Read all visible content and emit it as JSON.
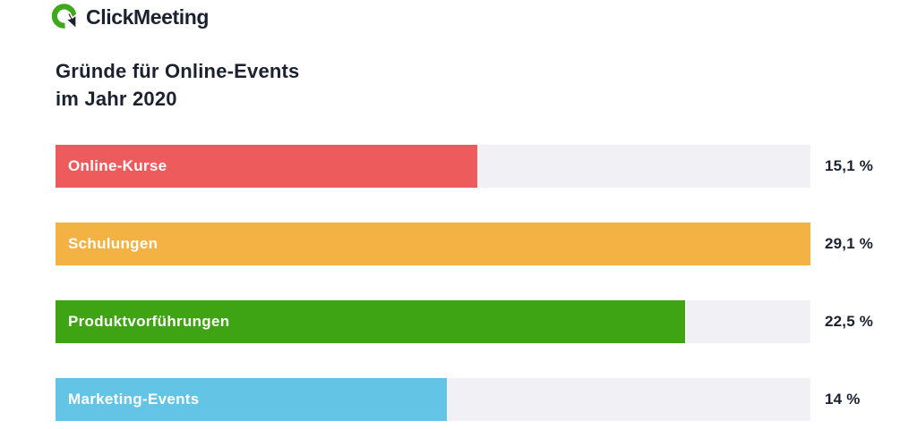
{
  "header": {
    "logo_text": "ClickMeeting",
    "logo_green": "#3fa81b",
    "logo_dark": "#1c2130"
  },
  "chart_data": {
    "type": "bar",
    "orientation": "horizontal",
    "title": "Gründe für Online-Events im Jahr 2020",
    "title_lines": [
      "Gründe für Online-Events",
      "im Jahr 2020"
    ],
    "categories": [
      "Online-Kurse",
      "Schulungen",
      "Produktvorführungen",
      "Marketing-Events"
    ],
    "values": [
      15.1,
      29.1,
      22.5,
      14
    ],
    "value_labels": [
      "15,1 %",
      "29,1 %",
      "22,5 %",
      "14 %"
    ],
    "bar_colors": [
      "#ee5b5d",
      "#f4b245",
      "#3fa414",
      "#64c4e6"
    ],
    "track_color": "#f1f0f5",
    "text_color": "#1c2130",
    "bar_label_color": "#ffffff",
    "xlim": [
      0,
      27
    ],
    "grid": false,
    "legend": false
  }
}
